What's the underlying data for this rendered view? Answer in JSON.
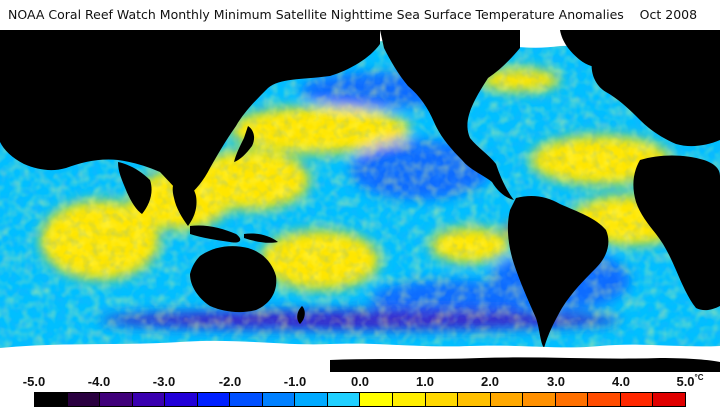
{
  "title": "NOAA Coral Reef Watch Monthly Minimum Satellite Nighttime Sea Surface Temperature Anomalies    Oct 2008",
  "colorbar": {
    "tick_labels": [
      "-5.0",
      "-4.0",
      "-3.0",
      "-2.0",
      "-1.0",
      "0.0",
      "1.0",
      "2.0",
      "3.0",
      "4.0",
      "5.0"
    ],
    "unit": "°C",
    "colors": [
      "#000000",
      "#2a0040",
      "#40007a",
      "#3a00b0",
      "#2200d8",
      "#0020ff",
      "#0050ff",
      "#0080ff",
      "#00aaff",
      "#20d0ff",
      "#ffff00",
      "#ffee00",
      "#ffd800",
      "#ffc000",
      "#ffa800",
      "#ff9000",
      "#ff7000",
      "#ff4c00",
      "#ff2800",
      "#e00000"
    ]
  },
  "map_colors": {
    "land": "#000000",
    "ice": "#ffffff",
    "ocean_neutral": "#00bfff",
    "ocean_cool": "#0a6cff",
    "ocean_warm": "#ffe600",
    "ocean_hot": "#ff6a00",
    "ocean_cold": "#3a20c8"
  }
}
